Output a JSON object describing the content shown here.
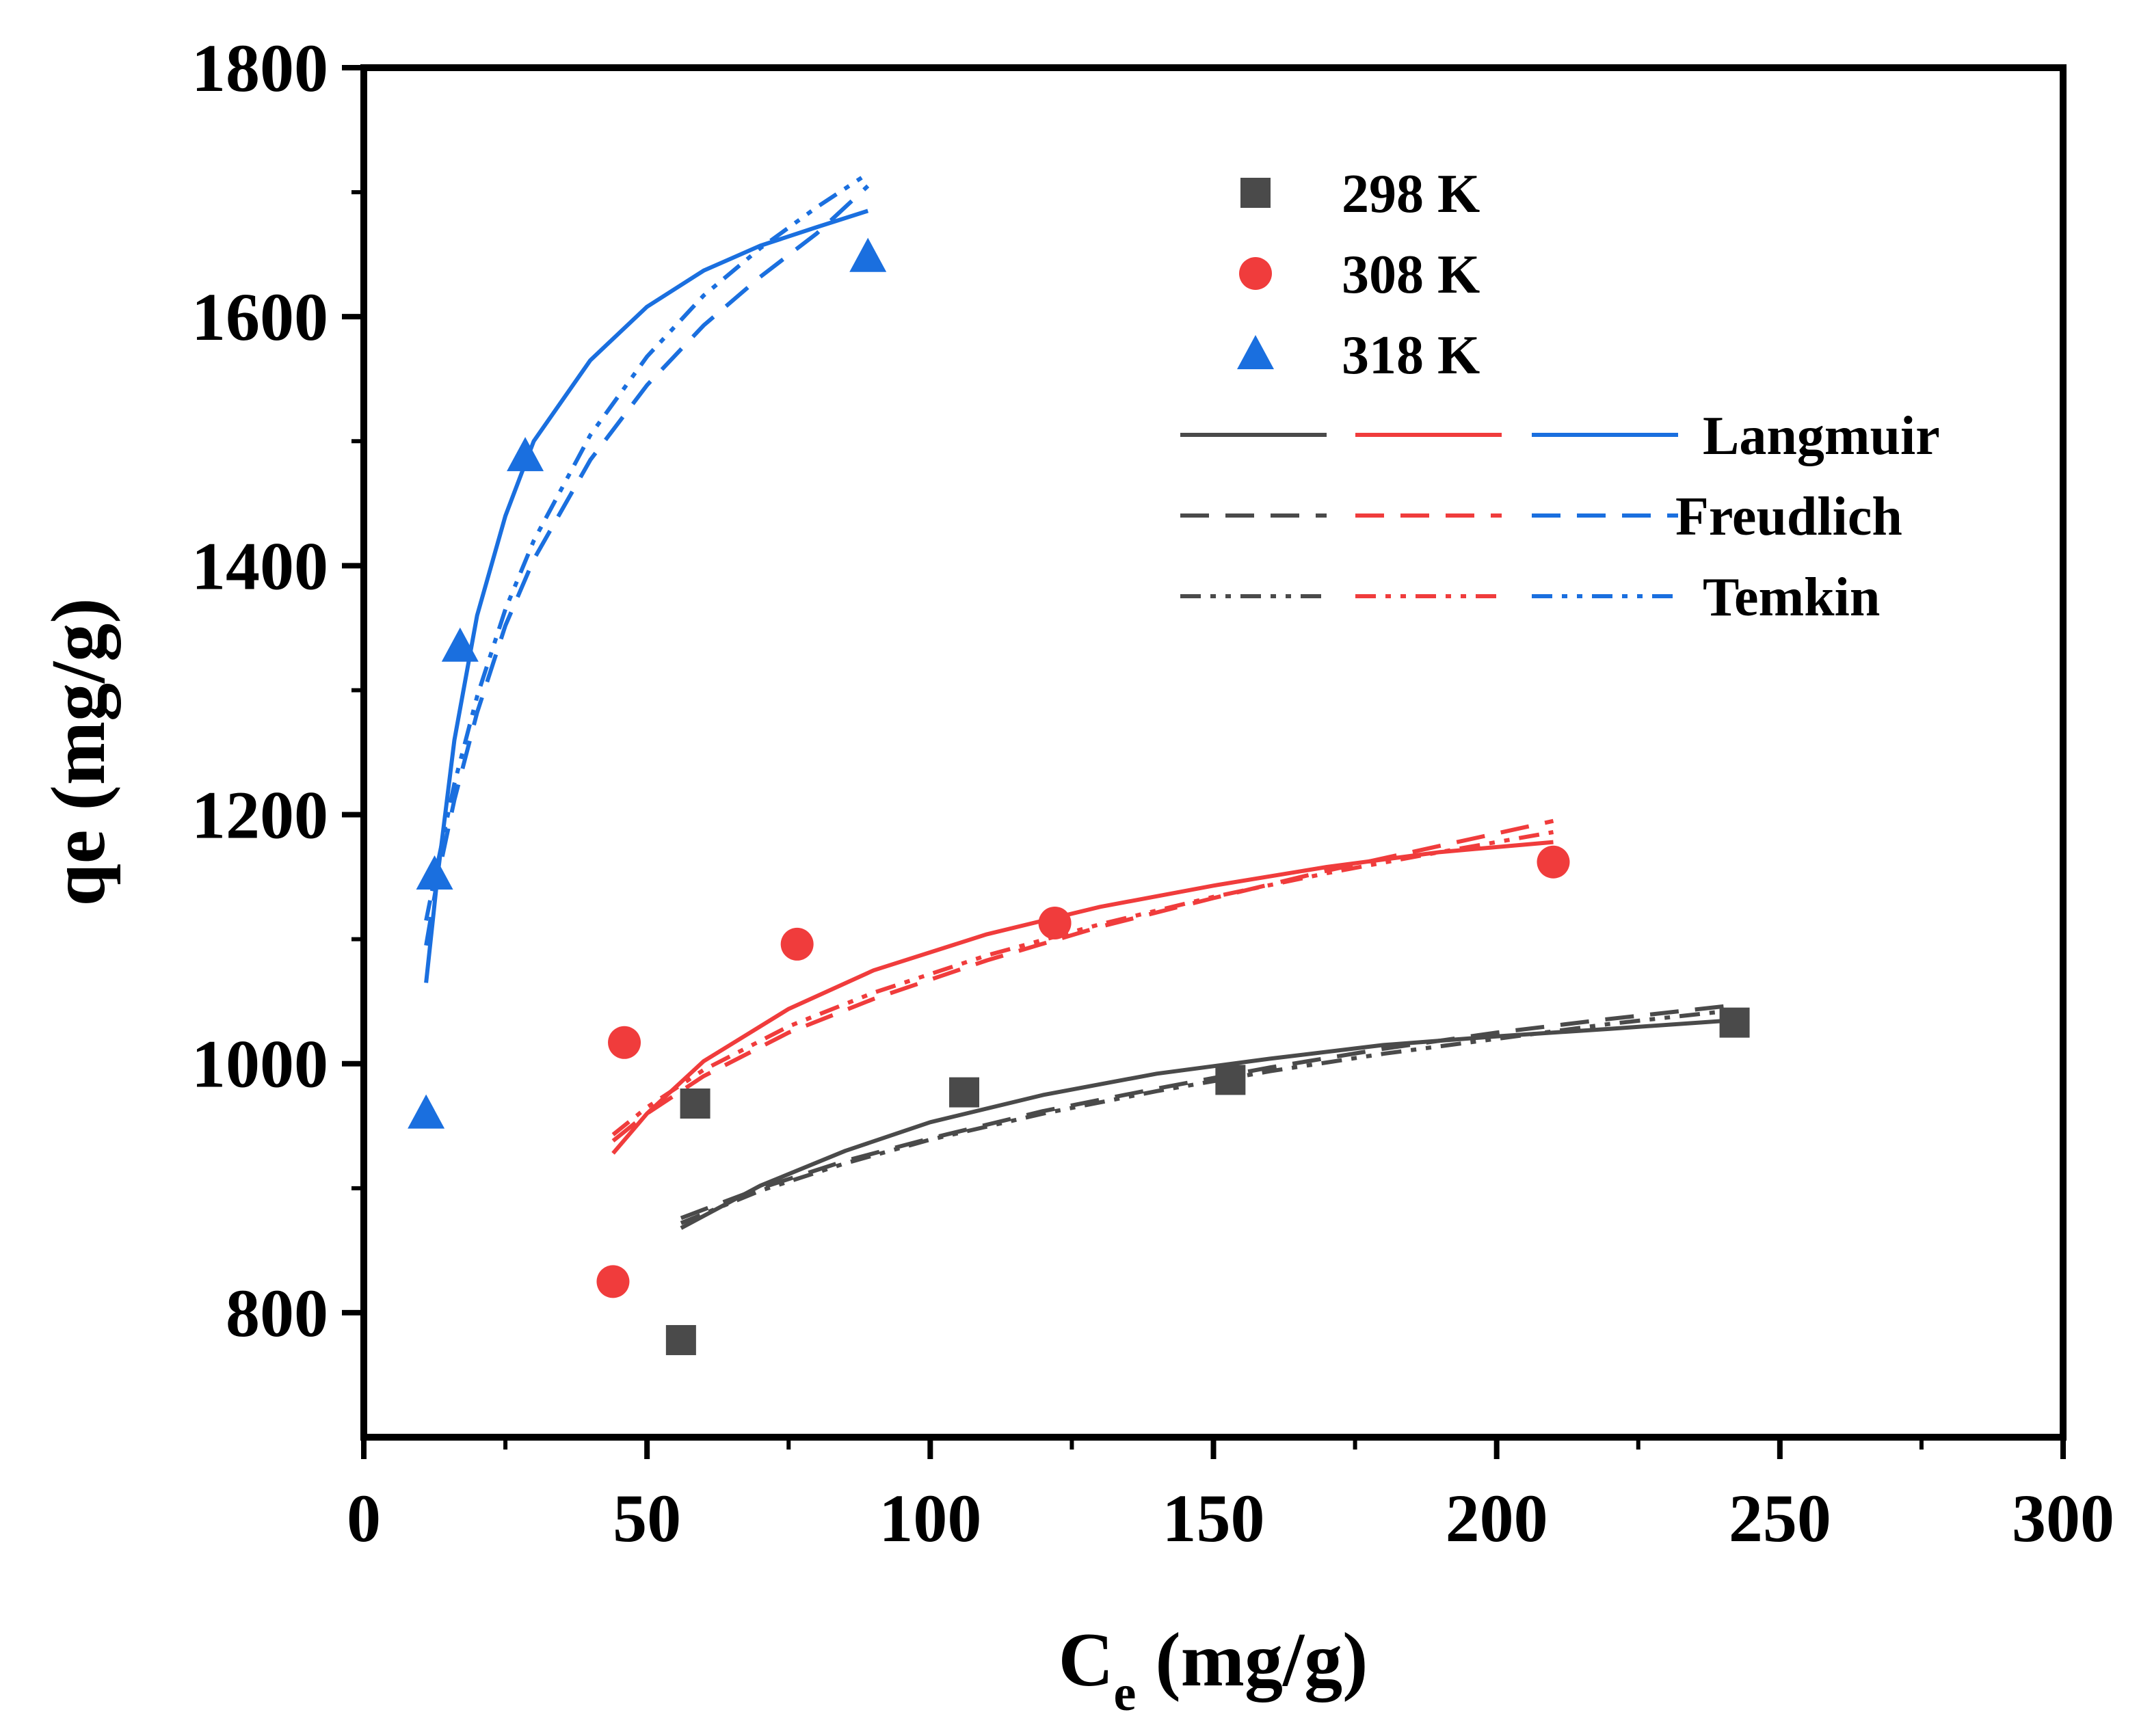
{
  "chart_data": {
    "type": "scatter",
    "title": "",
    "xlabel_main": "C",
    "xlabel_sub": "e",
    "xlabel_unit": " (mg/g)",
    "ylabel": "qe (mg/g)",
    "xlim": [
      0,
      300
    ],
    "ylim": [
      700,
      1800
    ],
    "x_ticks": [
      0,
      50,
      100,
      150,
      200,
      250,
      300
    ],
    "x_tick_labels": [
      "0",
      "50",
      "100",
      "150",
      "200",
      "250",
      "300"
    ],
    "y_ticks": [
      800,
      1000,
      1200,
      1400,
      1600,
      1800
    ],
    "y_tick_labels": [
      "800",
      "1000",
      "1200",
      "1400",
      "1600",
      "1800"
    ],
    "grid": false,
    "legend_position": "top-right",
    "series": [
      {
        "name": "298 K",
        "marker": "square",
        "color": "#4a4a4a",
        "x": [
          56,
          58.5,
          106,
          153,
          242
        ],
        "y": [
          778,
          968,
          977,
          987,
          1033
        ]
      },
      {
        "name": "308 K",
        "marker": "circle",
        "color": "#f03c3c",
        "x": [
          44,
          46,
          76.5,
          122,
          210
        ],
        "y": [
          825,
          1017,
          1096,
          1113,
          1162
        ]
      },
      {
        "name": "318 K",
        "marker": "triangle",
        "color": "#1a6fdf",
        "x": [
          11,
          12.5,
          17,
          28.5,
          89
        ],
        "y": [
          960,
          1152,
          1335,
          1488,
          1648
        ]
      }
    ],
    "fits": [
      {
        "model": "Langmuir",
        "style": "solid",
        "curves": [
          {
            "series": "298 K",
            "x": [
              56,
              70,
              85,
              100,
              120,
              140,
              160,
              180,
              200,
              220,
              242
            ],
            "y": [
              868,
              902,
              930,
              953,
              975,
              992,
              1004,
              1015,
              1022,
              1028,
              1035
            ]
          },
          {
            "series": "308 K",
            "x": [
              44,
              50,
              60,
              75,
              90,
              110,
              130,
              150,
              170,
              190,
              210
            ],
            "y": [
              928,
              960,
              1002,
              1044,
              1075,
              1104,
              1126,
              1143,
              1158,
              1170,
              1178
            ]
          },
          {
            "series": "318 K",
            "x": [
              11,
              13,
              16,
              20,
              25,
              30,
              40,
              50,
              60,
              70,
              80,
              89
            ],
            "y": [
              1065,
              1150,
              1260,
              1360,
              1440,
              1500,
              1565,
              1608,
              1637,
              1657,
              1672,
              1685
            ]
          }
        ]
      },
      {
        "model": "Freudlich",
        "style": "dashed",
        "curves": [
          {
            "series": "298 K",
            "x": [
              56,
              70,
              85,
              100,
              120,
              140,
              160,
              180,
              200,
              220,
              242
            ],
            "y": [
              876,
              900,
              922,
              940,
              962,
              980,
              997,
              1012,
              1025,
              1036,
              1047
            ]
          },
          {
            "series": "308 K",
            "x": [
              44,
              50,
              60,
              75,
              90,
              110,
              130,
              150,
              170,
              190,
              210
            ],
            "y": [
              938,
              960,
              990,
              1025,
              1052,
              1083,
              1110,
              1133,
              1155,
              1175,
              1195
            ]
          },
          {
            "series": "318 K",
            "x": [
              11,
              13,
              16,
              20,
              25,
              30,
              40,
              50,
              60,
              70,
              80,
              89
            ],
            "y": [
              1095,
              1148,
              1212,
              1282,
              1352,
              1405,
              1485,
              1545,
              1593,
              1632,
              1667,
              1705
            ]
          }
        ]
      },
      {
        "model": "Temkin",
        "style": "dashdotdot",
        "curves": [
          {
            "series": "298 K",
            "x": [
              56,
              70,
              85,
              100,
              120,
              140,
              160,
              180,
              200,
              220,
              242
            ],
            "y": [
              872,
              898,
              920,
              939,
              960,
              978,
              994,
              1008,
              1020,
              1032,
              1043
            ]
          },
          {
            "series": "308 K",
            "x": [
              44,
              50,
              60,
              75,
              90,
              110,
              130,
              150,
              170,
              190,
              210
            ],
            "y": [
              943,
              965,
              995,
              1030,
              1057,
              1087,
              1112,
              1134,
              1153,
              1170,
              1186
            ]
          },
          {
            "series": "318 K",
            "x": [
              11,
              13,
              16,
              20,
              25,
              30,
              40,
              50,
              60,
              70,
              80,
              89
            ],
            "y": [
              1115,
              1160,
              1225,
              1295,
              1365,
              1420,
              1505,
              1568,
              1617,
              1655,
              1688,
              1715
            ]
          }
        ]
      }
    ],
    "legend": {
      "series_labels": [
        "298 K",
        "308 K",
        "318 K"
      ],
      "fit_labels": [
        "Langmuir",
        "Freudlich",
        "Temkin"
      ]
    }
  }
}
